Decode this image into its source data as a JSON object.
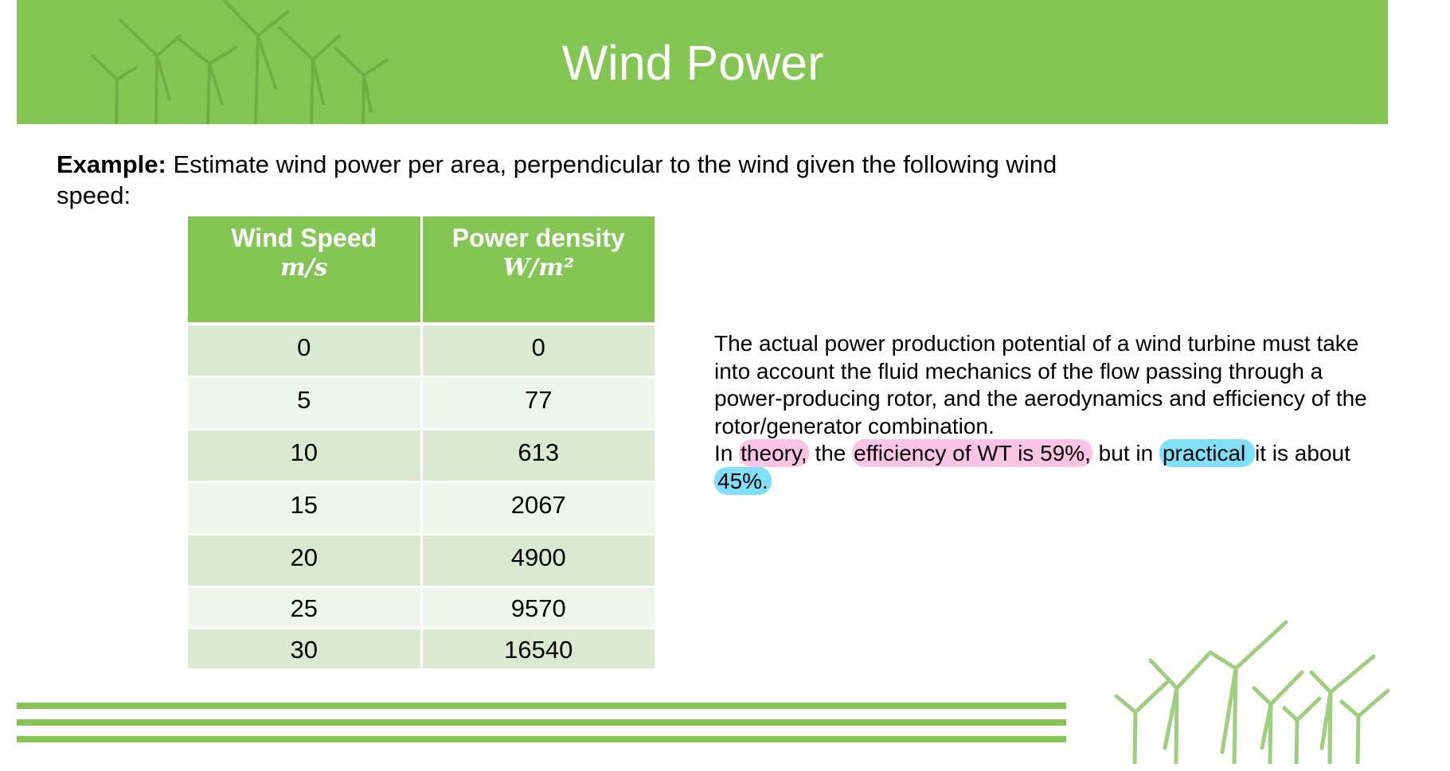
{
  "slide": {
    "title": "Wind Power",
    "example_label": "Example:",
    "example_text": " Estimate wind power per area, perpendicular to the wind given the following wind speed:"
  },
  "table": {
    "headers": [
      {
        "label": "Wind Speed",
        "unit": "m/s"
      },
      {
        "label": "Power density",
        "unit": "W/m²"
      }
    ],
    "rows": [
      [
        "0",
        "0"
      ],
      [
        "5",
        "77"
      ],
      [
        "10",
        "613"
      ],
      [
        "15",
        "2067"
      ],
      [
        "20",
        "4900"
      ],
      [
        "25",
        "9570"
      ],
      [
        "30",
        "16540"
      ]
    ]
  },
  "description": {
    "paragraph": "The actual power production potential of a wind turbine must take into account the fluid mechanics of the flow passing through a power-producing rotor, and the aerodynamics and efficiency of the rotor/generator combination.",
    "line_parts": [
      "In ",
      "theory,",
      " the ",
      "efficiency of WT is 59%,",
      " but in ",
      "practical ",
      "it is about ",
      "45%."
    ]
  },
  "colors": {
    "banner": "#84c653",
    "row_dark": "#d9ead0",
    "row_light": "#eef5ea",
    "highlight_pink": "#fbc4e5",
    "highlight_blue": "#7fe0f7"
  },
  "icons": [
    "wind-turbine-icon"
  ]
}
